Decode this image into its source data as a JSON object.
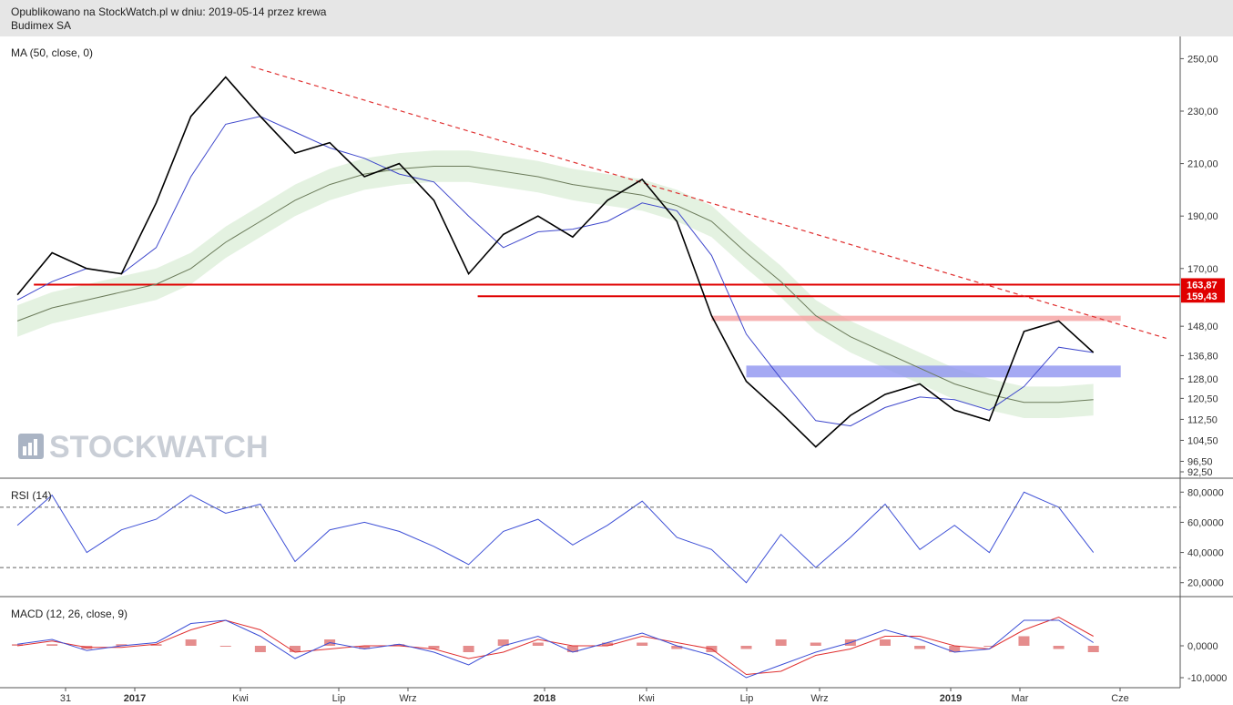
{
  "header": {
    "published": "Opublikowano na StockWatch.pl w dniu: 2019-05-14 przez krewa",
    "instrument": "Budimex SA"
  },
  "watermark": "STOCKWATCH",
  "colors": {
    "price": "#000000",
    "ma50": "#3f48cc",
    "ma200": "#6b7b5a",
    "trendline": "#e03030",
    "resistance": "#e00000",
    "resistance_zone": "#f5a0a0",
    "support_zone": "#8f94f0",
    "cloud_bull": "#d8ecd4",
    "cloud_bear": "#f8cccc",
    "rsi": "#3d4fd6",
    "macd": "#3d4fd6",
    "signal": "#e03030",
    "histogram": "#d03030",
    "badge": "#e00000"
  },
  "chart_data": [
    {
      "type": "line",
      "panel": "price",
      "label": "MA (50, close, 0)",
      "x_ticks": [
        "31",
        "2017",
        "Kwi",
        "Lip",
        "Wrz",
        "2018",
        "Kwi",
        "Lip",
        "Wrz",
        "2019",
        "Mar",
        "Cze"
      ],
      "y_ticks": [
        "250,00",
        "230,00",
        "210,00",
        "190,00",
        "170,00",
        "148,00",
        "136,80",
        "128,00",
        "120,50",
        "112,50",
        "104,50",
        "96,50",
        "92,50"
      ],
      "ylim": [
        92.5,
        255
      ],
      "x": [
        "2016-10",
        "2016-11",
        "2016-12",
        "2017-01",
        "2017-02",
        "2017-03",
        "2017-04",
        "2017-05",
        "2017-06",
        "2017-07",
        "2017-08",
        "2017-09",
        "2017-10",
        "2017-11",
        "2017-12",
        "2018-01",
        "2018-02",
        "2018-03",
        "2018-04",
        "2018-05",
        "2018-06",
        "2018-07",
        "2018-08",
        "2018-09",
        "2018-10",
        "2018-11",
        "2018-12",
        "2019-01",
        "2019-02",
        "2019-03",
        "2019-04",
        "2019-05"
      ],
      "series": [
        {
          "values": [
            160,
            176,
            170,
            168,
            195,
            228,
            243,
            228,
            214,
            218,
            205,
            210,
            196,
            168,
            183,
            190,
            182,
            196,
            204,
            188,
            152,
            127,
            115,
            102,
            114,
            122,
            126,
            116,
            112,
            146,
            150,
            138
          ]
        },
        {
          "name": "MA (50, close, 0)",
          "values": [
            158,
            165,
            170,
            168,
            178,
            205,
            225,
            228,
            222,
            216,
            212,
            206,
            203,
            190,
            178,
            184,
            185,
            188,
            195,
            192,
            175,
            145,
            128,
            112,
            110,
            117,
            121,
            120,
            116,
            125,
            140,
            138
          ]
        },
        {
          "values": [
            150,
            155,
            158,
            161,
            164,
            170,
            180,
            188,
            196,
            202,
            206,
            208,
            209,
            209,
            207,
            205,
            202,
            200,
            198,
            194,
            188,
            176,
            165,
            152,
            144,
            138,
            132,
            126,
            122,
            119,
            119,
            120
          ]
        }
      ],
      "annotations": {
        "resistance_labels": [
          "163,87",
          "159,43"
        ],
        "trendline": [
          [
            "2017-05",
            247
          ],
          [
            "2019-05",
            142
          ]
        ],
        "resistance_lines": [
          163.87,
          159.43
        ],
        "resistance_zone": [
          150,
          152
        ],
        "support_zone": [
          128.5,
          133
        ]
      }
    },
    {
      "type": "line",
      "panel": "rsi",
      "label": "RSI (14)",
      "y_ticks": [
        "80,0000",
        "60,0000",
        "40,0000",
        "20,0000"
      ],
      "ylim": [
        15,
        85
      ],
      "levels": [
        30,
        70
      ],
      "x": [
        "2016-10",
        "2016-11",
        "2016-12",
        "2017-01",
        "2017-02",
        "2017-03",
        "2017-04",
        "2017-05",
        "2017-06",
        "2017-07",
        "2017-08",
        "2017-09",
        "2017-10",
        "2017-11",
        "2017-12",
        "2018-01",
        "2018-02",
        "2018-03",
        "2018-04",
        "2018-05",
        "2018-06",
        "2018-07",
        "2018-08",
        "2018-09",
        "2018-10",
        "2018-11",
        "2018-12",
        "2019-01",
        "2019-02",
        "2019-03",
        "2019-04",
        "2019-05"
      ],
      "values": [
        58,
        78,
        40,
        55,
        62,
        78,
        66,
        72,
        34,
        55,
        60,
        54,
        44,
        32,
        54,
        62,
        45,
        58,
        74,
        50,
        42,
        20,
        52,
        30,
        50,
        72,
        42,
        58,
        40,
        80,
        70,
        40
      ]
    },
    {
      "type": "line",
      "panel": "macd",
      "label": "MACD (12, 26, close, 9)",
      "y_ticks": [
        "0,0000",
        "-10,0000"
      ],
      "ylim": [
        -12,
        14
      ],
      "x": [
        "2016-10",
        "2016-11",
        "2016-12",
        "2017-01",
        "2017-02",
        "2017-03",
        "2017-04",
        "2017-05",
        "2017-06",
        "2017-07",
        "2017-08",
        "2017-09",
        "2017-10",
        "2017-11",
        "2017-12",
        "2018-01",
        "2018-02",
        "2018-03",
        "2018-04",
        "2018-05",
        "2018-06",
        "2018-07",
        "2018-08",
        "2018-09",
        "2018-10",
        "2018-11",
        "2018-12",
        "2019-01",
        "2019-02",
        "2019-03",
        "2019-04",
        "2019-05"
      ],
      "series": [
        {
          "values": [
            0.5,
            2,
            -1.5,
            0,
            1,
            7,
            8,
            3,
            -4,
            1,
            -1,
            0.5,
            -2,
            -6,
            0,
            3,
            -2,
            1,
            4,
            0,
            -3,
            -10,
            -6,
            -2,
            1,
            5,
            2,
            -2,
            -1,
            8,
            8,
            1
          ]
        },
        {
          "values": [
            0,
            1.5,
            -0.5,
            -0.5,
            0.5,
            5,
            8,
            5,
            -2,
            -1,
            0,
            0,
            -1,
            -4,
            -2,
            2,
            0,
            0,
            3,
            1,
            -1,
            -9,
            -8,
            -3,
            -1,
            3,
            3,
            0,
            -1,
            5,
            9,
            3
          ]
        },
        {
          "values": [
            0.5,
            0.5,
            -1,
            0.5,
            0.5,
            2,
            0,
            -2,
            -2,
            2,
            -1,
            0.5,
            -1,
            -2,
            2,
            1,
            -2,
            1,
            1,
            -1,
            -2,
            -1,
            2,
            1,
            2,
            2,
            -1,
            -2,
            0,
            3,
            -1,
            -2
          ]
        }
      ]
    }
  ]
}
